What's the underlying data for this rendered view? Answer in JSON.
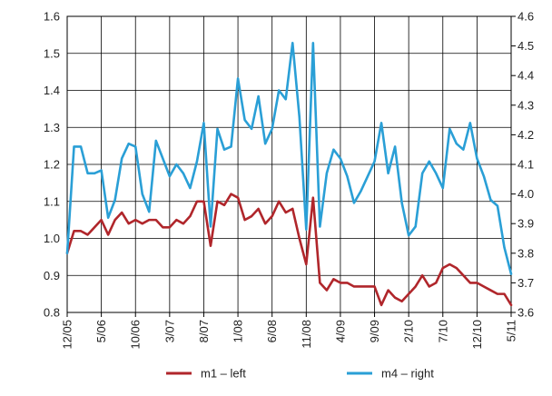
{
  "chart_data": {
    "type": "line",
    "x": [
      "12/05",
      "1/06",
      "2/06",
      "3/06",
      "4/06",
      "5/06",
      "6/06",
      "7/06",
      "8/06",
      "9/06",
      "10/06",
      "11/06",
      "12/06",
      "1/07",
      "2/07",
      "3/07",
      "4/07",
      "5/07",
      "6/07",
      "7/07",
      "8/07",
      "9/07",
      "10/07",
      "11/07",
      "12/07",
      "1/08",
      "2/08",
      "3/08",
      "4/08",
      "5/08",
      "6/08",
      "7/08",
      "8/08",
      "9/08",
      "10/08",
      "11/08",
      "12/08",
      "1/09",
      "2/09",
      "3/09",
      "4/09",
      "5/09",
      "6/09",
      "7/09",
      "8/09",
      "9/09",
      "10/09",
      "11/09",
      "12/09",
      "1/10",
      "2/10",
      "3/10",
      "4/10",
      "5/10",
      "6/10",
      "7/10",
      "8/10",
      "9/10",
      "10/10",
      "11/10",
      "12/10",
      "1/11",
      "2/11",
      "3/11",
      "4/11",
      "5/11"
    ],
    "x_tick_labels": [
      "12/05",
      "5/06",
      "10/06",
      "3/07",
      "8/07",
      "1/08",
      "6/08",
      "11/08",
      "4/09",
      "9/09",
      "2/10",
      "7/10",
      "12/10",
      "5/11"
    ],
    "x_tick_index": [
      0,
      5,
      10,
      15,
      20,
      25,
      30,
      35,
      40,
      45,
      50,
      55,
      60,
      65
    ],
    "series": [
      {
        "name": "m1 – left",
        "axis": "left",
        "color": "#b0262b",
        "values": [
          0.96,
          1.02,
          1.02,
          1.01,
          1.03,
          1.05,
          1.01,
          1.05,
          1.07,
          1.04,
          1.05,
          1.04,
          1.05,
          1.05,
          1.03,
          1.03,
          1.05,
          1.04,
          1.06,
          1.1,
          1.1,
          0.98,
          1.1,
          1.09,
          1.12,
          1.11,
          1.05,
          1.06,
          1.08,
          1.04,
          1.06,
          1.1,
          1.07,
          1.08,
          1.0,
          0.93,
          1.11,
          0.88,
          0.86,
          0.89,
          0.88,
          0.88,
          0.87,
          0.87,
          0.87,
          0.87,
          0.82,
          0.86,
          0.84,
          0.83,
          0.85,
          0.87,
          0.9,
          0.87,
          0.88,
          0.92,
          0.93,
          0.92,
          0.9,
          0.88,
          0.88,
          0.87,
          0.86,
          0.85,
          0.85,
          0.82
        ]
      },
      {
        "name": "m4 – right",
        "axis": "right",
        "color": "#2a9fd6",
        "values": [
          3.8,
          4.16,
          4.16,
          4.07,
          4.07,
          4.08,
          3.92,
          3.98,
          4.12,
          4.17,
          4.16,
          4.0,
          3.94,
          4.18,
          4.12,
          4.06,
          4.1,
          4.07,
          4.02,
          4.11,
          4.24,
          3.89,
          4.22,
          4.15,
          4.16,
          4.39,
          4.25,
          4.22,
          4.33,
          4.17,
          4.22,
          4.35,
          4.32,
          4.51,
          4.26,
          3.88,
          4.51,
          3.89,
          4.07,
          4.15,
          4.12,
          4.06,
          3.97,
          4.01,
          4.06,
          4.11,
          4.24,
          4.07,
          4.16,
          3.97,
          3.86,
          3.89,
          4.07,
          4.11,
          4.07,
          4.02,
          4.22,
          4.17,
          4.15,
          4.24,
          4.12,
          4.06,
          3.98,
          3.96,
          3.82,
          3.73
        ]
      }
    ],
    "ylim_left": [
      0.8,
      1.6
    ],
    "yticks_left": [
      "0.8",
      "0.9",
      "1.0",
      "1.1",
      "1.2",
      "1.3",
      "1.4",
      "1.5",
      "1.6"
    ],
    "ylim_right": [
      3.6,
      4.6
    ],
    "yticks_right": [
      "3.6",
      "3.7",
      "3.8",
      "3.9",
      "4.0",
      "4.1",
      "4.2",
      "4.3",
      "4.4",
      "4.5",
      "4.6"
    ],
    "grid": true,
    "legend": "bottom-center"
  }
}
